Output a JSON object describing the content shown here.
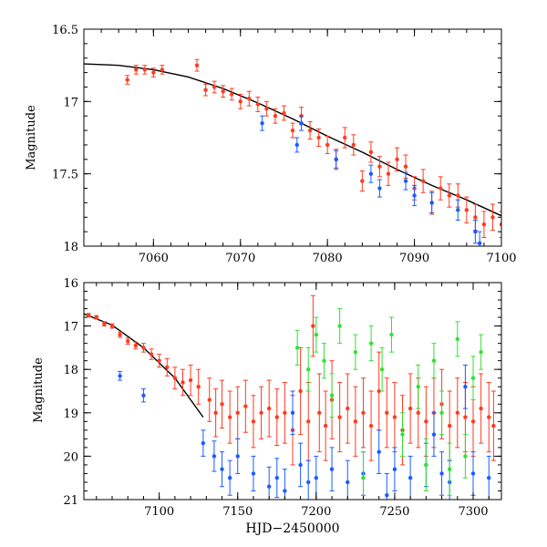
{
  "chart_data": [
    {
      "type": "scatter",
      "title": "",
      "xlabel": "",
      "ylabel": "Magnitude",
      "xlim": [
        7052,
        7100
      ],
      "ylim": [
        18,
        16.5
      ],
      "y_inverted": true,
      "xticks": [
        7060,
        7070,
        7080,
        7090,
        7100
      ],
      "xtick_labels": [
        "7060",
        "7070",
        "7080",
        "7090",
        "7100"
      ],
      "yticks": [
        16.5,
        17,
        17.5,
        18
      ],
      "ytick_labels": [
        "16.5",
        "17",
        "17.5",
        "18"
      ],
      "colors": {
        "red": "#ff3b1f",
        "blue": "#1a5cff",
        "curve": "#000000"
      },
      "model_curve": {
        "name": "fit",
        "x": [
          7052,
          7056,
          7060,
          7064,
          7068,
          7072,
          7076,
          7080,
          7084,
          7088,
          7092,
          7096,
          7100
        ],
        "y": [
          16.74,
          16.75,
          16.78,
          16.83,
          16.91,
          17.01,
          17.12,
          17.24,
          17.35,
          17.47,
          17.58,
          17.68,
          17.79
        ]
      },
      "series": [
        {
          "name": "red",
          "color": "#ff3b1f",
          "x": [
            7057,
            7058,
            7059,
            7060,
            7061,
            7065,
            7066,
            7067,
            7068,
            7069,
            7070,
            7071,
            7072,
            7073,
            7074,
            7075,
            7076,
            7077,
            7078,
            7079,
            7080,
            7081,
            7082,
            7083,
            7084,
            7085,
            7086,
            7087,
            7088,
            7089,
            7090,
            7091,
            7092,
            7093,
            7094,
            7095,
            7096,
            7097,
            7098,
            7099,
            7100
          ],
          "y": [
            16.85,
            16.78,
            16.78,
            16.8,
            16.78,
            16.75,
            16.92,
            16.9,
            16.93,
            16.95,
            17.0,
            16.98,
            17.02,
            17.05,
            17.1,
            17.08,
            17.2,
            17.1,
            17.2,
            17.25,
            17.3,
            17.4,
            17.25,
            17.3,
            17.55,
            17.35,
            17.45,
            17.5,
            17.4,
            17.45,
            17.6,
            17.55,
            17.7,
            17.6,
            17.65,
            17.65,
            17.75,
            17.8,
            17.85,
            17.8,
            17.85
          ],
          "yerr": [
            0.03,
            0.03,
            0.03,
            0.03,
            0.03,
            0.04,
            0.04,
            0.04,
            0.04,
            0.04,
            0.05,
            0.05,
            0.05,
            0.05,
            0.05,
            0.05,
            0.05,
            0.06,
            0.06,
            0.06,
            0.06,
            0.07,
            0.07,
            0.07,
            0.07,
            0.07,
            0.07,
            0.08,
            0.08,
            0.08,
            0.08,
            0.08,
            0.08,
            0.08,
            0.08,
            0.08,
            0.09,
            0.09,
            0.09,
            0.09,
            0.09
          ]
        },
        {
          "name": "blue",
          "color": "#1a5cff",
          "x": [
            7072.5,
            7076.5,
            7077,
            7081,
            7085,
            7086,
            7089,
            7090,
            7092,
            7095,
            7097,
            7097.5
          ],
          "y": [
            17.15,
            17.3,
            17.15,
            17.4,
            17.5,
            17.6,
            17.55,
            17.65,
            17.7,
            17.75,
            17.9,
            17.98
          ],
          "yerr": [
            0.05,
            0.05,
            0.05,
            0.06,
            0.06,
            0.06,
            0.06,
            0.07,
            0.07,
            0.07,
            0.08,
            0.08
          ]
        }
      ]
    },
    {
      "type": "scatter",
      "title": "",
      "xlabel": "HJD−2450000",
      "ylabel": "Magnitude",
      "xlim": [
        7052,
        7318
      ],
      "ylim": [
        21,
        16
      ],
      "y_inverted": true,
      "xticks": [
        7100,
        7150,
        7200,
        7250,
        7300
      ],
      "xtick_labels": [
        "7100",
        "7150",
        "7200",
        "7250",
        "7300"
      ],
      "yticks": [
        16,
        17,
        18,
        19,
        20,
        21
      ],
      "ytick_labels": [
        "16",
        "17",
        "18",
        "19",
        "20",
        "21"
      ],
      "colors": {
        "red": "#ff3b1f",
        "blue": "#1a5cff",
        "green": "#33e033",
        "curve": "#000000"
      },
      "model_curve": {
        "name": "fit",
        "x": [
          7052,
          7070,
          7090,
          7110,
          7128
        ],
        "y": [
          16.72,
          16.98,
          17.5,
          18.2,
          19.1
        ]
      },
      "series": [
        {
          "name": "red",
          "color": "#ff3b1f",
          "x": [
            7055,
            7060,
            7065,
            7070,
            7075,
            7080,
            7085,
            7090,
            7095,
            7100,
            7105,
            7110,
            7115,
            7120,
            7125,
            7132,
            7136,
            7140,
            7145,
            7150,
            7155,
            7160,
            7165,
            7170,
            7175,
            7180,
            7185,
            7190,
            7195,
            7198,
            7202,
            7206,
            7210,
            7215,
            7220,
            7225,
            7230,
            7235,
            7240,
            7245,
            7250,
            7255,
            7260,
            7265,
            7270,
            7275,
            7280,
            7285,
            7290,
            7295,
            7300,
            7305,
            7310,
            7313
          ],
          "y": [
            16.75,
            16.8,
            16.95,
            17.0,
            17.2,
            17.35,
            17.45,
            17.5,
            17.65,
            17.8,
            17.95,
            18.2,
            18.3,
            18.25,
            18.4,
            18.7,
            19.0,
            18.8,
            19.1,
            19.0,
            18.85,
            19.2,
            19.0,
            18.9,
            19.1,
            19.0,
            19.4,
            18.5,
            19.2,
            17.0,
            19.0,
            19.3,
            18.7,
            19.1,
            18.9,
            19.2,
            19.0,
            19.3,
            18.5,
            19.0,
            19.1,
            19.4,
            18.9,
            19.0,
            19.2,
            19.0,
            18.8,
            19.3,
            19.0,
            19.1,
            19.2,
            18.9,
            19.1,
            19.3
          ],
          "yerr": [
            0.04,
            0.04,
            0.05,
            0.05,
            0.06,
            0.07,
            0.08,
            0.1,
            0.12,
            0.15,
            0.2,
            0.25,
            0.3,
            0.35,
            0.4,
            0.5,
            0.55,
            0.55,
            0.6,
            0.6,
            0.6,
            0.6,
            0.6,
            0.65,
            0.65,
            0.7,
            0.8,
            1.0,
            0.9,
            0.7,
            0.9,
            0.8,
            0.9,
            0.8,
            0.8,
            0.8,
            0.8,
            0.8,
            0.9,
            0.8,
            0.8,
            0.8,
            0.8,
            0.8,
            0.8,
            0.8,
            0.8,
            0.8,
            0.8,
            0.8,
            0.8,
            0.8,
            0.8,
            0.8
          ]
        },
        {
          "name": "blue",
          "color": "#1a5cff",
          "x": [
            7075,
            7090,
            7128,
            7135,
            7140,
            7145,
            7150,
            7160,
            7170,
            7175,
            7180,
            7185,
            7190,
            7195,
            7200,
            7210,
            7220,
            7230,
            7240,
            7245,
            7250,
            7260,
            7270,
            7275,
            7280,
            7285,
            7295,
            7300,
            7310
          ],
          "y": [
            18.15,
            18.6,
            19.7,
            20.0,
            20.3,
            20.5,
            20.0,
            20.4,
            20.7,
            20.5,
            20.8,
            19.0,
            20.2,
            20.6,
            20.5,
            20.3,
            20.6,
            20.4,
            19.9,
            20.9,
            20.3,
            20.5,
            20.2,
            19.5,
            20.4,
            20.6,
            18.4,
            20.4,
            20.5
          ],
          "yerr": [
            0.1,
            0.15,
            0.3,
            0.35,
            0.4,
            0.4,
            0.4,
            0.4,
            0.45,
            0.45,
            0.5,
            0.5,
            0.5,
            0.5,
            0.5,
            0.5,
            0.5,
            0.5,
            0.5,
            0.5,
            0.5,
            0.5,
            0.5,
            0.5,
            0.5,
            0.5,
            0.5,
            0.5,
            0.5
          ]
        },
        {
          "name": "green",
          "color": "#33e033",
          "x": [
            7188,
            7195,
            7200,
            7205,
            7210,
            7215,
            7225,
            7230,
            7235,
            7242,
            7248,
            7255,
            7265,
            7270,
            7275,
            7280,
            7285,
            7290,
            7295,
            7300,
            7305
          ],
          "y": [
            17.5,
            18.0,
            17.2,
            17.8,
            18.6,
            17.0,
            17.6,
            20.5,
            17.4,
            18.0,
            17.2,
            19.5,
            18.4,
            20.2,
            17.8,
            19.0,
            20.3,
            17.3,
            20.0,
            18.2,
            17.6
          ],
          "yerr": [
            0.4,
            0.5,
            0.4,
            0.4,
            0.5,
            0.4,
            0.4,
            0.6,
            0.4,
            0.5,
            0.4,
            0.5,
            0.5,
            0.6,
            0.4,
            0.5,
            0.6,
            0.4,
            0.5,
            0.5,
            0.4
          ]
        }
      ]
    }
  ]
}
